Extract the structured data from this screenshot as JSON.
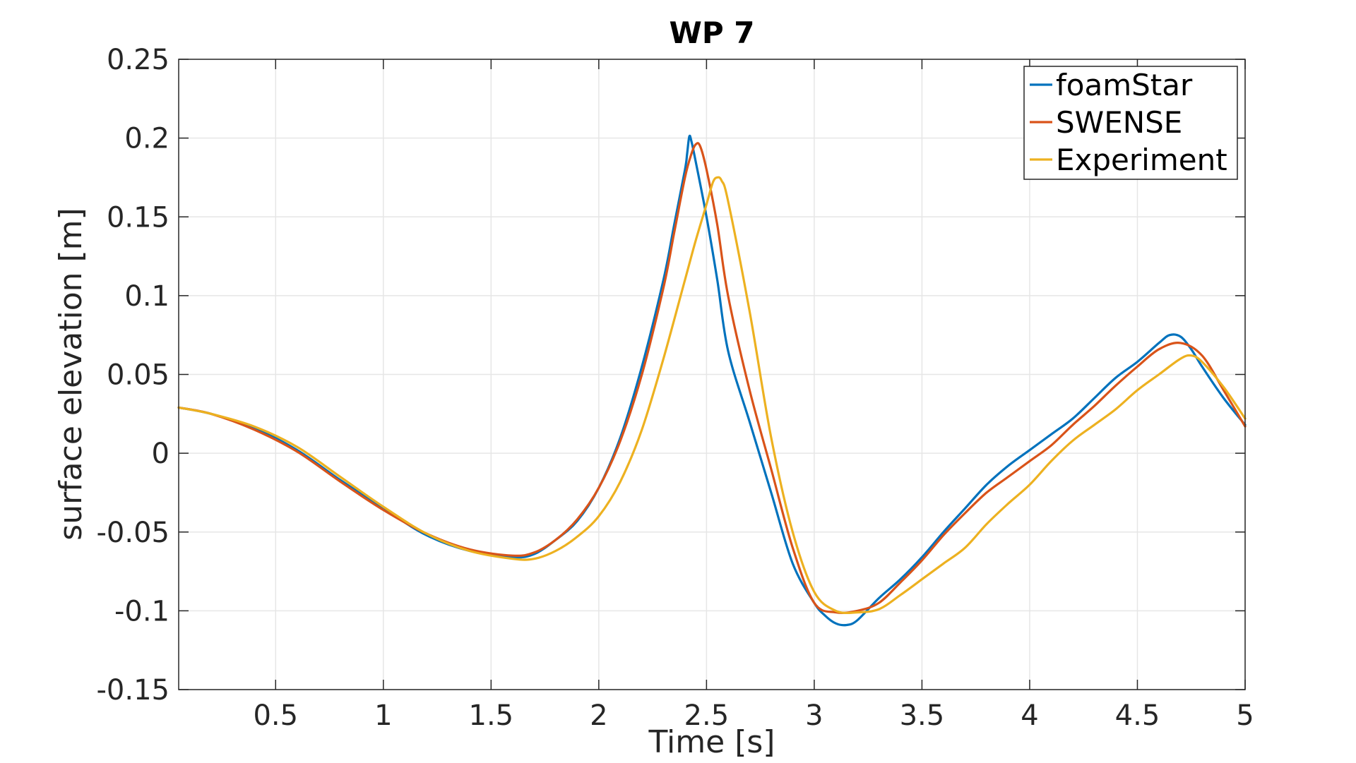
{
  "chart_data": {
    "type": "line",
    "title": "WP 7",
    "xlabel": "Time [s]",
    "ylabel": "surface elevation [m]",
    "xlim": [
      0.05,
      5
    ],
    "ylim": [
      -0.15,
      0.25
    ],
    "xticks": [
      0.5,
      1,
      1.5,
      2,
      2.5,
      3,
      3.5,
      4,
      4.5,
      5
    ],
    "xtick_labels": [
      "0.5",
      "1",
      "1.5",
      "2",
      "2.5",
      "3",
      "3.5",
      "4",
      "4.5",
      "5"
    ],
    "yticks": [
      -0.15,
      -0.1,
      -0.05,
      0,
      0.05,
      0.1,
      0.15,
      0.2,
      0.25
    ],
    "ytick_labels": [
      "-0.15",
      "-0.1",
      "-0.05",
      "0",
      "0.05",
      "0.1",
      "0.15",
      "0.2",
      "0.25"
    ],
    "grid": true,
    "legend_position": "top-right",
    "series": [
      {
        "name": "foamStar",
        "color": "#0072BD",
        "x": [
          0.05,
          0.2,
          0.4,
          0.6,
          0.8,
          1.0,
          1.2,
          1.4,
          1.6,
          1.7,
          1.8,
          1.9,
          2.0,
          2.1,
          2.2,
          2.3,
          2.35,
          2.4,
          2.41,
          2.42,
          2.43,
          2.45,
          2.5,
          2.55,
          2.6,
          2.7,
          2.8,
          2.9,
          3.0,
          3.05,
          3.1,
          3.15,
          3.2,
          3.3,
          3.4,
          3.5,
          3.6,
          3.7,
          3.8,
          3.9,
          4.0,
          4.1,
          4.2,
          4.3,
          4.4,
          4.5,
          4.6,
          4.65,
          4.7,
          4.75,
          4.8,
          4.9,
          5.0
        ],
        "y": [
          0.029,
          0.025,
          0.016,
          0.002,
          -0.017,
          -0.035,
          -0.052,
          -0.062,
          -0.066,
          -0.064,
          -0.055,
          -0.043,
          -0.022,
          0.01,
          0.055,
          0.11,
          0.145,
          0.18,
          0.19,
          0.201,
          0.198,
          0.185,
          0.15,
          0.11,
          0.065,
          0.02,
          -0.025,
          -0.07,
          -0.095,
          -0.103,
          -0.108,
          -0.109,
          -0.106,
          -0.092,
          -0.08,
          -0.066,
          -0.05,
          -0.035,
          -0.02,
          -0.008,
          0.002,
          0.012,
          0.022,
          0.035,
          0.048,
          0.058,
          0.07,
          0.075,
          0.074,
          0.066,
          0.055,
          0.035,
          0.018
        ]
      },
      {
        "name": "SWENSE",
        "color": "#D95319",
        "x": [
          0.05,
          0.2,
          0.4,
          0.6,
          0.8,
          1.0,
          1.2,
          1.4,
          1.6,
          1.7,
          1.8,
          1.9,
          2.0,
          2.1,
          2.2,
          2.3,
          2.35,
          2.4,
          2.43,
          2.45,
          2.47,
          2.5,
          2.55,
          2.6,
          2.7,
          2.8,
          2.9,
          3.0,
          3.1,
          3.2,
          3.3,
          3.4,
          3.5,
          3.6,
          3.7,
          3.8,
          3.9,
          4.0,
          4.1,
          4.2,
          4.3,
          4.4,
          4.5,
          4.6,
          4.7,
          4.8,
          4.9,
          5.0
        ],
        "y": [
          0.029,
          0.025,
          0.015,
          0.001,
          -0.018,
          -0.036,
          -0.051,
          -0.061,
          -0.065,
          -0.063,
          -0.055,
          -0.042,
          -0.022,
          0.008,
          0.05,
          0.105,
          0.14,
          0.175,
          0.19,
          0.196,
          0.195,
          0.18,
          0.145,
          0.1,
          0.04,
          -0.01,
          -0.06,
          -0.095,
          -0.101,
          -0.1,
          -0.095,
          -0.082,
          -0.068,
          -0.052,
          -0.038,
          -0.025,
          -0.015,
          -0.005,
          0.005,
          0.018,
          0.03,
          0.043,
          0.055,
          0.066,
          0.07,
          0.062,
          0.04,
          0.017
        ]
      },
      {
        "name": "Experiment",
        "color": "#EDB120",
        "x": [
          0.05,
          0.2,
          0.4,
          0.6,
          0.8,
          1.0,
          1.2,
          1.4,
          1.6,
          1.7,
          1.8,
          1.9,
          2.0,
          2.1,
          2.2,
          2.3,
          2.4,
          2.45,
          2.5,
          2.53,
          2.55,
          2.57,
          2.6,
          2.7,
          2.8,
          2.9,
          3.0,
          3.1,
          3.2,
          3.3,
          3.4,
          3.5,
          3.6,
          3.7,
          3.8,
          3.9,
          4.0,
          4.1,
          4.2,
          4.3,
          4.4,
          4.5,
          4.6,
          4.7,
          4.75,
          4.8,
          4.9,
          5.0
        ],
        "y": [
          0.029,
          0.025,
          0.017,
          0.004,
          -0.015,
          -0.034,
          -0.051,
          -0.062,
          -0.067,
          -0.067,
          -0.062,
          -0.053,
          -0.04,
          -0.018,
          0.015,
          0.06,
          0.11,
          0.135,
          0.158,
          0.172,
          0.175,
          0.173,
          0.16,
          0.09,
          0.01,
          -0.05,
          -0.088,
          -0.1,
          -0.101,
          -0.099,
          -0.09,
          -0.08,
          -0.07,
          -0.06,
          -0.045,
          -0.032,
          -0.02,
          -0.005,
          0.008,
          0.018,
          0.028,
          0.04,
          0.05,
          0.06,
          0.062,
          0.058,
          0.042,
          0.022
        ]
      }
    ]
  }
}
